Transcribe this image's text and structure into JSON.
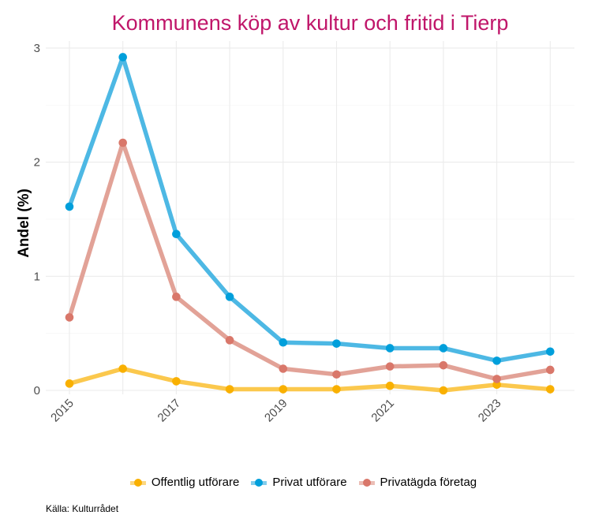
{
  "chart_data": {
    "type": "line",
    "title": "Kommunens köp av kultur och fritid i Tierp",
    "xlabel": "",
    "ylabel": "Andel (%)",
    "x": [
      2015,
      2016,
      2017,
      2018,
      2019,
      2020,
      2021,
      2022,
      2023,
      2024
    ],
    "x_tick_labels": [
      "2015",
      "2017",
      "2019",
      "2021",
      "2023"
    ],
    "y_tick_labels": [
      "0",
      "1",
      "2",
      "3"
    ],
    "ylim": [
      0,
      3
    ],
    "grid": true,
    "legend_position": "bottom",
    "series": [
      {
        "name": "Offentlig utförare",
        "color": "#f9b000",
        "line_color": "#fbc84d",
        "values": [
          0.06,
          0.19,
          0.08,
          0.01,
          0.01,
          0.01,
          0.04,
          0.0,
          0.05,
          0.01
        ]
      },
      {
        "name": "Privat utförare",
        "color": "#009fdb",
        "line_color": "#4db8e4",
        "values": [
          1.61,
          2.92,
          1.37,
          0.82,
          0.42,
          0.41,
          0.37,
          0.37,
          0.26,
          0.34
        ]
      },
      {
        "name": "Privatägda företag",
        "color": "#d9776a",
        "line_color": "#e2a297",
        "values": [
          0.64,
          2.17,
          0.82,
          0.44,
          0.19,
          0.14,
          0.21,
          0.22,
          0.1,
          0.18
        ]
      }
    ],
    "caption": "Källa: Kulturrådet"
  }
}
